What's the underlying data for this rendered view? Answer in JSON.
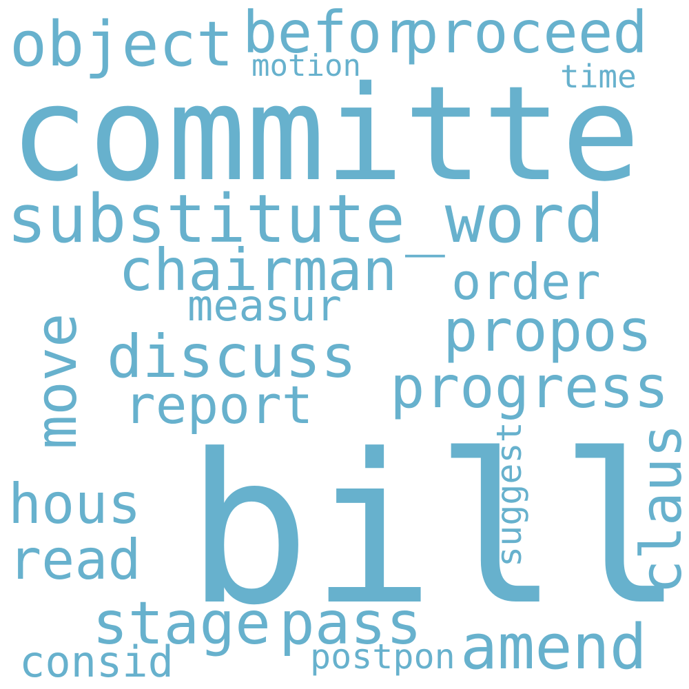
{
  "color": "#67b1cd",
  "background": "#ffffff",
  "words": [
    "committe",
    "bill",
    "substitute_word",
    "object",
    "befor",
    "proceed",
    "motion",
    "time",
    "chairman",
    "order",
    "measur",
    "propos",
    "discuss",
    "progress",
    "report",
    "move",
    "claus",
    "suggest",
    "hous",
    "read",
    "stage",
    "pass",
    "amend",
    "consid",
    "postpon"
  ]
}
